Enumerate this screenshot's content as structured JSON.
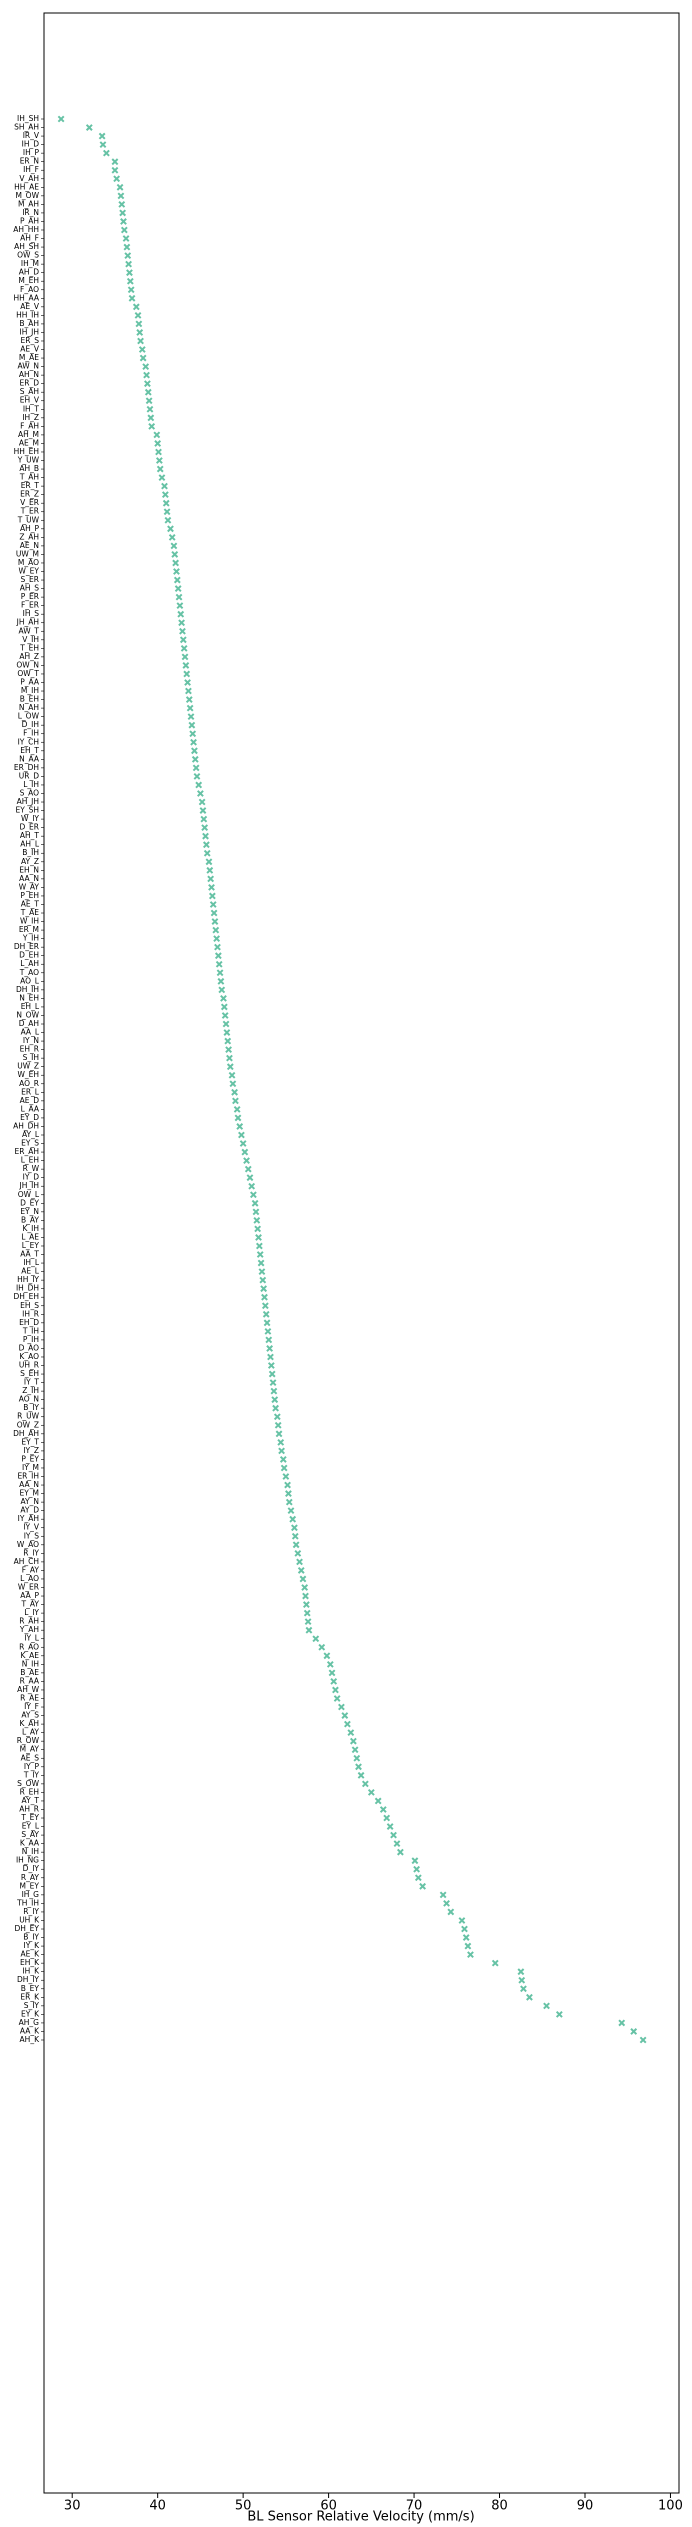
{
  "chart_data": {
    "type": "scatter",
    "x_label": "BL Sensor Relative Velocity (mm/s)",
    "marker_color": "#66c2a5",
    "xlim": [
      26.7,
      101
    ],
    "xticks": [
      30,
      40,
      50,
      60,
      70,
      80,
      90,
      100
    ],
    "categories": [
      "IH_SH",
      "SH_AH",
      "IR_V",
      "IH_D",
      "IH_P",
      "ER_N",
      "IH_F",
      "V_AH",
      "HH_AE",
      "M_OW",
      "M_AH",
      "IR_N",
      "P_AH",
      "AH_HH",
      "AH_F",
      "AH_SH",
      "OW_S",
      "IH_M",
      "AH_D",
      "M_EH",
      "F_AO",
      "HH_AA",
      "AE_V",
      "HH_IH",
      "B_AH",
      "IH_JH",
      "ER_S",
      "AE_V",
      "M_AE",
      "AW_N",
      "AH_N",
      "ER_D",
      "S_AH",
      "EH_V",
      "IH_T",
      "IH_Z",
      "F_AH",
      "AH_M",
      "AE_M",
      "HH_EH",
      "Y_UW",
      "AH_B",
      "T_AH",
      "ER_T",
      "ER_Z",
      "V_ER",
      "T_ER",
      "T_UW",
      "AH_P",
      "Z_AH",
      "AE_N",
      "UW_M",
      "M_AO",
      "W_EY",
      "S_ER",
      "AH_S",
      "P_ER",
      "F_ER",
      "IH_S",
      "JH_AH",
      "AW_T",
      "V_IH",
      "T_EH",
      "AH_Z",
      "OW_N",
      "OW_T",
      "P_AA",
      "M_IH",
      "B_EH",
      "N_AH",
      "L_OW",
      "D_IH",
      "F_IH",
      "IY_CH",
      "EH_T",
      "N_AA",
      "ER_DH",
      "UR_D",
      "L_IH",
      "S_AO",
      "AH_JH",
      "EY_SH",
      "W_IY",
      "D_ER",
      "AH_T",
      "AH_L",
      "B_IH",
      "AY_Z",
      "EH_N",
      "AA_N",
      "W_AY",
      "P_EH",
      "AE_T",
      "T_AE",
      "W_IH",
      "ER_M",
      "Y_IH",
      "DH_ER",
      "D_EH",
      "L_AH",
      "T_AO",
      "AO_L",
      "DH_IH",
      "N_EH",
      "EH_L",
      "N_OW",
      "D_AH",
      "AA_L",
      "IY_N",
      "EH_R",
      "S_IH",
      "UW_Z",
      "W_EH",
      "AO_R",
      "ER_L",
      "AE_D",
      "L_AA",
      "EY_D",
      "AH_DH",
      "AY_L",
      "EY_S",
      "ER_AH",
      "L_EH",
      "R_W",
      "IY_D",
      "JH_IH",
      "OW_L",
      "D_EY",
      "EY_N",
      "B_AY",
      "K_IH",
      "L_AE",
      "L_EY",
      "AA_T",
      "IH_L",
      "AE_L",
      "HH_IY",
      "IH_DH",
      "DH_EH",
      "EH_S",
      "IH_R",
      "EH_D",
      "T_IH",
      "P_IH",
      "D_AO",
      "K_AO",
      "UH_R",
      "S_EH",
      "IY_T",
      "Z_IH",
      "AO_N",
      "B_IY",
      "R_UW",
      "OW_Z",
      "DH_AH",
      "EY_T",
      "IY_Z",
      "P_EY",
      "IY_M",
      "ER_IH",
      "AA_N",
      "EY_M",
      "AY_N",
      "AY_D",
      "IY_AH",
      "IY_V",
      "IY_S",
      "W_AO",
      "R_IY",
      "AH_CH",
      "F_AY",
      "L_AO",
      "W_ER",
      "AA_P",
      "T_AY",
      "L_IY",
      "R_AH",
      "Y_AH",
      "IY_L",
      "R_AO",
      "K_AE",
      "N_IH",
      "B_AE",
      "R_AA",
      "AH_W",
      "R_AE",
      "IY_F",
      "AY_S",
      "K_AH",
      "L_AY",
      "R_OW",
      "M_AY",
      "AE_S",
      "IY_P",
      "T_IY",
      "S_OW",
      "R_EH",
      "AY_T",
      "AH_R",
      "T_EY",
      "EY_L",
      "S_AY",
      "K_AA",
      "N_IH",
      "IH_NG",
      "D_IY",
      "R_AY",
      "M_EY",
      "IH_G",
      "TH_IH",
      "R_IY",
      "UH_K",
      "DH_EY",
      "B_IY",
      "IY_K",
      "AE_K",
      "EH_K",
      "IH_K",
      "DH_IY",
      "B_EY",
      "ER_K",
      "S_IY",
      "EY_K",
      "AH_G",
      "AA_K",
      "AH_K"
    ],
    "values": [
      28.7,
      32,
      33.5,
      33.6,
      34,
      35,
      35,
      35.2,
      35.6,
      35.7,
      35.8,
      35.9,
      36,
      36.1,
      36.3,
      36.4,
      36.5,
      36.6,
      36.7,
      36.8,
      36.9,
      37,
      37.5,
      37.7,
      37.8,
      37.9,
      38,
      38.2,
      38.3,
      38.6,
      38.7,
      38.8,
      38.9,
      39,
      39.1,
      39.2,
      39.3,
      39.9,
      40,
      40.1,
      40.2,
      40.3,
      40.5,
      40.8,
      40.9,
      41,
      41.1,
      41.2,
      41.5,
      41.7,
      41.9,
      42,
      42.1,
      42.2,
      42.3,
      42.4,
      42.5,
      42.6,
      42.7,
      42.8,
      42.9,
      43,
      43.1,
      43.2,
      43.3,
      43.4,
      43.5,
      43.6,
      43.7,
      43.8,
      43.9,
      44,
      44.1,
      44.2,
      44.3,
      44.4,
      44.5,
      44.6,
      44.8,
      45,
      45.2,
      45.3,
      45.4,
      45.5,
      45.6,
      45.7,
      45.8,
      46,
      46.1,
      46.2,
      46.3,
      46.4,
      46.5,
      46.6,
      46.7,
      46.8,
      46.9,
      47,
      47.1,
      47.2,
      47.3,
      47.4,
      47.5,
      47.7,
      47.8,
      47.9,
      48,
      48.1,
      48.2,
      48.3,
      48.4,
      48.5,
      48.7,
      48.8,
      49,
      49.1,
      49.3,
      49.4,
      49.6,
      49.8,
      50,
      50.2,
      50.4,
      50.6,
      50.8,
      51,
      51.2,
      51.4,
      51.5,
      51.6,
      51.7,
      51.8,
      51.9,
      52,
      52.1,
      52.2,
      52.3,
      52.4,
      52.5,
      52.6,
      52.7,
      52.8,
      52.9,
      53,
      53.1,
      53.2,
      53.3,
      53.4,
      53.5,
      53.6,
      53.7,
      53.8,
      54,
      54.1,
      54.2,
      54.4,
      54.5,
      54.7,
      54.8,
      55,
      55.2,
      55.3,
      55.4,
      55.6,
      55.8,
      56,
      56.1,
      56.2,
      56.4,
      56.6,
      56.8,
      57,
      57.2,
      57.3,
      57.4,
      57.5,
      57.6,
      57.7,
      58.5,
      59.2,
      59.8,
      60.2,
      60.4,
      60.6,
      60.8,
      61,
      61.5,
      61.9,
      62.2,
      62.6,
      62.9,
      63.1,
      63.3,
      63.5,
      63.8,
      64.3,
      65,
      65.8,
      66.4,
      66.8,
      67.2,
      67.6,
      68,
      68.4,
      70.1,
      70.3,
      70.5,
      71,
      73.4,
      73.8,
      74.3,
      75.6,
      75.9,
      76.1,
      76.3,
      76.6,
      79.5,
      82.5,
      82.6,
      82.8,
      83.5,
      85.5,
      87,
      94.3,
      95.7,
      96.8
    ]
  }
}
